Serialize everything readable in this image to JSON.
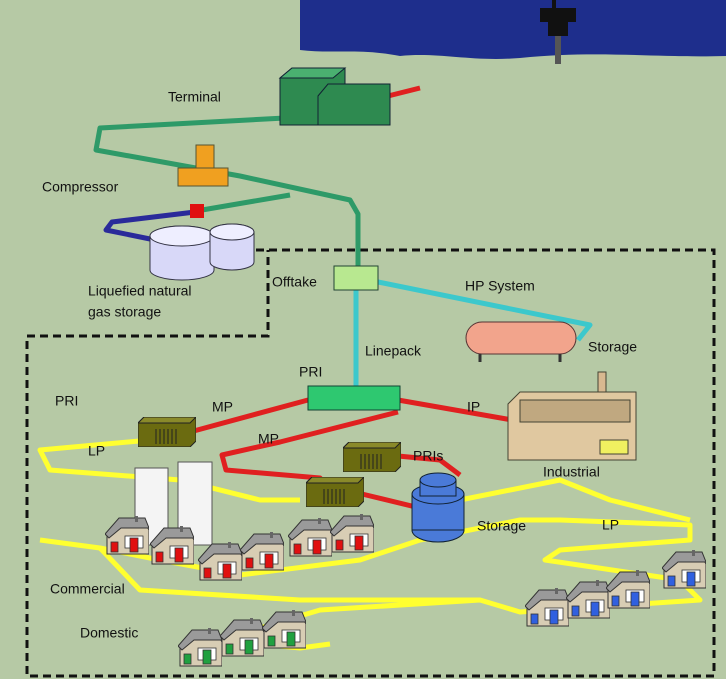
{
  "labels": [
    {
      "text": "Terminal"
    },
    {
      "text": "Compressor"
    },
    {
      "text": "Liquefied natural"
    },
    {
      "text": "gas storage"
    },
    {
      "text": "Offtake"
    },
    {
      "text": "HP System"
    },
    {
      "text": "Linepack"
    },
    {
      "text": "Storage"
    },
    {
      "text": "PRI"
    },
    {
      "text": "PRI"
    },
    {
      "text": "MP"
    },
    {
      "text": "IP"
    },
    {
      "text": "MP"
    },
    {
      "text": "PRIs"
    },
    {
      "text": "Industrial"
    },
    {
      "text": "LP"
    },
    {
      "text": "Storage"
    },
    {
      "text": "LP"
    },
    {
      "text": "Commercial"
    },
    {
      "text": "Domestic"
    }
  ]
}
